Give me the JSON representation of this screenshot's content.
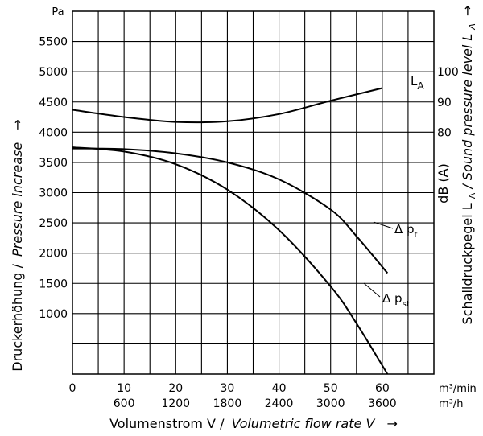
{
  "chart_data": {
    "type": "line",
    "title": "",
    "grid": true,
    "x_axis": {
      "label_de": "Volumenstrom V /",
      "label_en": "Volumetric flow rate V",
      "arrow": "→",
      "primary_unit": "m³/min",
      "secondary_unit": "m³/h",
      "range": [
        0,
        70
      ],
      "ticks": [
        0,
        10,
        20,
        30,
        40,
        50,
        60
      ],
      "secondary_ticks": [
        {
          "at": 10,
          "label": "600"
        },
        {
          "at": 20,
          "label": "1200"
        },
        {
          "at": 30,
          "label": "1800"
        },
        {
          "at": 40,
          "label": "2400"
        },
        {
          "at": 50,
          "label": "3000"
        },
        {
          "at": 60,
          "label": "3600"
        }
      ]
    },
    "y_axis": {
      "label_de": "Druckerhöhung /",
      "label_en": "Pressure increase",
      "arrow": "→",
      "unit": "Pa",
      "range": [
        0,
        6000
      ],
      "ticks": [
        1000,
        1500,
        2000,
        2500,
        3000,
        3500,
        4000,
        4500,
        5000,
        5500
      ]
    },
    "y2_axis": {
      "label_de": "Schalldruckpegel L",
      "label_sub": "A",
      "label_en": " / Sound pressure level L",
      "label_en_sub": "A",
      "arrow": "→",
      "unit": "dB (A)",
      "ticks": [
        {
          "value": 80,
          "at_pa": 4000
        },
        {
          "value": 90,
          "at_pa": 4500
        },
        {
          "value": 100,
          "at_pa": 5000
        }
      ]
    },
    "series": [
      {
        "name": "L",
        "name_sub": "A",
        "color": "#000000",
        "points": [
          [
            0,
            4370
          ],
          [
            10,
            4250
          ],
          [
            20,
            4170
          ],
          [
            30,
            4180
          ],
          [
            40,
            4300
          ],
          [
            50,
            4520
          ],
          [
            60,
            4730
          ]
        ]
      },
      {
        "name": "Δ p",
        "name_sub": "t",
        "color": "#000000",
        "points": [
          [
            0,
            3730
          ],
          [
            10,
            3720
          ],
          [
            20,
            3650
          ],
          [
            30,
            3500
          ],
          [
            40,
            3220
          ],
          [
            50,
            2720
          ],
          [
            55,
            2280
          ],
          [
            61,
            1670
          ]
        ]
      },
      {
        "name": "Δ p",
        "name_sub": "st",
        "color": "#000000",
        "points": [
          [
            0,
            3750
          ],
          [
            10,
            3680
          ],
          [
            20,
            3470
          ],
          [
            30,
            3050
          ],
          [
            40,
            2380
          ],
          [
            50,
            1450
          ],
          [
            55,
            840
          ],
          [
            61,
            0
          ]
        ]
      }
    ]
  }
}
